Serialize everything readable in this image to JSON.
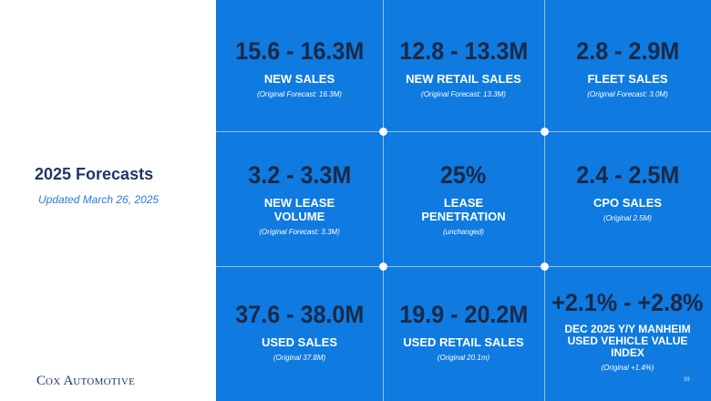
{
  "slide": {
    "title": "2025 Forecasts",
    "subtitle": "Updated March 26, 2025",
    "logo_cap_c": "C",
    "logo_ox": "OX",
    "logo_cap_a": " A",
    "logo_utomotive": "UTOMOTIVE",
    "page_number": "39"
  },
  "forecasts": [
    {
      "value": "15.6 - 16.3M",
      "label": "NEW SALES",
      "note": "(Original Forecast: 16.3M)"
    },
    {
      "value": "12.8 - 13.3M",
      "label": "NEW RETAIL SALES",
      "note": "(Original Forecast: 13.3M)"
    },
    {
      "value": "2.8 - 2.9M",
      "label": "FLEET SALES",
      "note": "(Original Forecast: 3.0M)"
    },
    {
      "value": "3.2 - 3.3M",
      "label": "NEW LEASE VOLUME",
      "note": "(Original Forecast: 3.3M)"
    },
    {
      "value": "25%",
      "label": "LEASE PENETRATION",
      "note": "(unchanged)"
    },
    {
      "value": "2.4 - 2.5M",
      "label": "CPO SALES",
      "note": "(Original 2.5M)"
    },
    {
      "value": "37.6 - 38.0M",
      "label": "USED SALES",
      "note": "(Original 37.8M)"
    },
    {
      "value": "19.9 - 20.2M",
      "label": "USED RETAIL SALES",
      "note": "(Original 20.1m)"
    },
    {
      "value": "+2.1% - +2.8%",
      "label": "DEC 2025 Y/Y MANHEIM USED VEHICLE VALUE INDEX",
      "note": "(Original +1.4%)"
    }
  ],
  "colors": {
    "panel_blue": "#0f7ae0",
    "value_navy": "#1a2a48",
    "title_navy": "#1f3864",
    "subtitle_blue": "#2f7bd0"
  }
}
